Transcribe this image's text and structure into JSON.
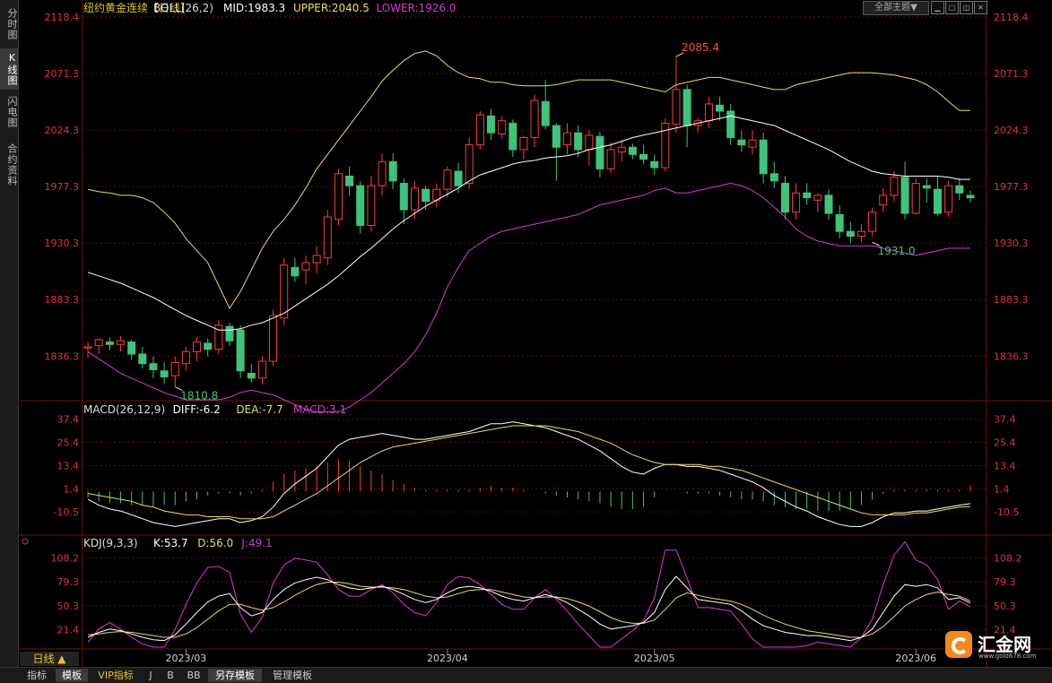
{
  "app": {
    "side_tabs": [
      "分时图",
      "K线图",
      "闪电图",
      "合约资料"
    ],
    "theme_button": "全部主题▼",
    "period_button": "日线 ▲",
    "bottom_tabs": [
      "指标",
      "模板",
      "VIP指标",
      "J",
      "B",
      "BB",
      "另存模板",
      "管理模板"
    ],
    "logo_text": "汇金网",
    "logo_url": "www.gold678.com"
  },
  "colors": {
    "up": "#ff3b3b",
    "down": "#3ec47a",
    "mid": "#ffffff",
    "upper": "#e6e04a",
    "lower": "#d43cd4",
    "grid": "#5a0f0f"
  },
  "chart_data": [
    {
      "type": "candlestick",
      "title": "纽约黄金连续",
      "period": "【日线】",
      "indicator": "BOLL(26,2)",
      "legend": [
        {
          "label": "MID:1983.3",
          "color": "#ffffff"
        },
        {
          "label": "UPPER:2040.5",
          "color": "#e6e04a"
        },
        {
          "label": "LOWER:1926.0",
          "color": "#d43cd4"
        }
      ],
      "y_ticks": [
        "2118.4",
        "2071.3",
        "2024.3",
        "1977.3",
        "1930.3",
        "1883.3",
        "1836.3"
      ],
      "ylim": [
        1800,
        2122
      ],
      "x_ticks": [
        {
          "label": "2023/03",
          "index": 9
        },
        {
          "label": "2023/04",
          "index": 33
        },
        {
          "label": "2023/05",
          "index": 52
        },
        {
          "label": "2023/06",
          "index": 76
        }
      ],
      "annotations": [
        {
          "label": "2085.4",
          "index": 54,
          "value": 2085.4
        },
        {
          "label": "1931.0",
          "index": 72,
          "value": 1931.0
        },
        {
          "label": "1810.8",
          "index": 8,
          "value": 1810.8
        }
      ],
      "ohlc": [
        [
          1843,
          1848,
          1835,
          1844
        ],
        [
          1845,
          1851,
          1838,
          1850
        ],
        [
          1848,
          1852,
          1841,
          1846
        ],
        [
          1846,
          1853,
          1840,
          1849
        ],
        [
          1848,
          1850,
          1833,
          1838
        ],
        [
          1838,
          1844,
          1826,
          1830
        ],
        [
          1830,
          1836,
          1818,
          1825
        ],
        [
          1824,
          1831,
          1813,
          1819
        ],
        [
          1820,
          1836,
          1810.8,
          1831
        ],
        [
          1830,
          1844,
          1824,
          1840
        ],
        [
          1840,
          1852,
          1832,
          1848
        ],
        [
          1847,
          1851,
          1836,
          1842
        ],
        [
          1842,
          1866,
          1838,
          1862
        ],
        [
          1861,
          1864,
          1845,
          1849
        ],
        [
          1858,
          1862,
          1818,
          1824
        ],
        [
          1822,
          1830,
          1814,
          1818
        ],
        [
          1818,
          1836,
          1813,
          1832
        ],
        [
          1832,
          1875,
          1828,
          1870
        ],
        [
          1868,
          1918,
          1862,
          1912
        ],
        [
          1910,
          1918,
          1898,
          1903
        ],
        [
          1908,
          1920,
          1896,
          1914
        ],
        [
          1914,
          1928,
          1905,
          1920
        ],
        [
          1918,
          1958,
          1912,
          1952
        ],
        [
          1950,
          1992,
          1945,
          1988
        ],
        [
          1986,
          1994,
          1970,
          1978
        ],
        [
          1978,
          1982,
          1938,
          1945
        ],
        [
          1945,
          1986,
          1940,
          1978
        ],
        [
          1978,
          2005,
          1970,
          1998
        ],
        [
          1998,
          2005,
          1975,
          1982
        ],
        [
          1980,
          1984,
          1946,
          1958
        ],
        [
          1958,
          1982,
          1950,
          1976
        ],
        [
          1975,
          1978,
          1958,
          1965
        ],
        [
          1966,
          1980,
          1960,
          1975
        ],
        [
          1975,
          1994,
          1968,
          1991
        ],
        [
          1990,
          1997,
          1972,
          1978
        ],
        [
          1980,
          2018,
          1975,
          2012
        ],
        [
          2012,
          2040,
          2008,
          2037
        ],
        [
          2036,
          2042,
          2016,
          2022
        ],
        [
          2021,
          2036,
          2017,
          2032
        ],
        [
          2030,
          2033,
          2002,
          2008
        ],
        [
          2008,
          2020,
          2000,
          2018
        ],
        [
          2018,
          2054,
          2010,
          2049
        ],
        [
          2048,
          2066,
          2025,
          2028
        ],
        [
          2028,
          2030,
          1982,
          2010
        ],
        [
          2012,
          2030,
          2004,
          2022
        ],
        [
          2022,
          2028,
          2002,
          2008
        ],
        [
          2008,
          2024,
          1995,
          2020
        ],
        [
          2019,
          2023,
          1985,
          1992
        ],
        [
          1992,
          2014,
          1988,
          2008
        ],
        [
          2006,
          2016,
          1998,
          2010
        ],
        [
          2010,
          2013,
          2000,
          2004
        ],
        [
          2004,
          2012,
          1996,
          2000
        ],
        [
          1998,
          2004,
          1987,
          1993
        ],
        [
          1993,
          2034,
          1990,
          2030
        ],
        [
          2029,
          2085.4,
          2022,
          2058
        ],
        [
          2058,
          2062,
          2010,
          2028
        ],
        [
          2028,
          2034,
          2022,
          2032
        ],
        [
          2032,
          2052,
          2026,
          2046
        ],
        [
          2045,
          2052,
          2032,
          2040
        ],
        [
          2040,
          2046,
          2012,
          2018
        ],
        [
          2016,
          2024,
          2006,
          2012
        ],
        [
          2010,
          2024,
          2004,
          2016
        ],
        [
          2016,
          2022,
          1980,
          1988
        ],
        [
          1988,
          1998,
          1976,
          1982
        ],
        [
          1980,
          1986,
          1950,
          1956
        ],
        [
          1956,
          1980,
          1950,
          1972
        ],
        [
          1972,
          1980,
          1962,
          1968
        ],
        [
          1966,
          1972,
          1956,
          1970
        ],
        [
          1970,
          1975,
          1950,
          1955
        ],
        [
          1954,
          1962,
          1934,
          1940
        ],
        [
          1940,
          1948,
          1930,
          1936
        ],
        [
          1936,
          1946,
          1931,
          1940
        ],
        [
          1940,
          1960,
          1936,
          1956
        ],
        [
          1962,
          1976,
          1956,
          1970
        ],
        [
          1970,
          1990,
          1965,
          1985
        ],
        [
          1985,
          1998,
          1950,
          1955
        ],
        [
          1955,
          1984,
          1954,
          1980
        ],
        [
          1978,
          1984,
          1964,
          1976
        ],
        [
          1975,
          1986,
          1953,
          1955
        ],
        [
          1956,
          1982,
          1952,
          1978
        ],
        [
          1978,
          1984,
          1966,
          1972
        ],
        [
          1970,
          1974,
          1964,
          1968
        ]
      ],
      "mid": [
        1906,
        1903,
        1900,
        1897,
        1893,
        1889,
        1885,
        1880,
        1875,
        1870,
        1866,
        1862,
        1858,
        1858,
        1859,
        1862,
        1864,
        1868,
        1872,
        1878,
        1884,
        1890,
        1896,
        1903,
        1911,
        1919,
        1926,
        1934,
        1942,
        1949,
        1955,
        1961,
        1966,
        1971,
        1976,
        1982,
        1987,
        1990,
        1993,
        1996,
        1998,
        1999,
        2001,
        2002,
        2003,
        2005,
        2008,
        2010,
        2012,
        2015,
        2018,
        2020,
        2022,
        2024,
        2026,
        2028,
        2030,
        2032,
        2034,
        2036,
        2034,
        2032,
        2030,
        2028,
        2024,
        2020,
        2016,
        2012,
        2008,
        2003,
        1998,
        1994,
        1990,
        1988,
        1987,
        1986,
        1986,
        1986,
        1986,
        1985,
        1983.3,
        1983.3
      ],
      "upper": [
        1975,
        1973,
        1972,
        1970,
        1970,
        1968,
        1964,
        1956,
        1947,
        1934,
        1924,
        1914,
        1895,
        1876,
        1890,
        1908,
        1926,
        1940,
        1950,
        1962,
        1976,
        1992,
        2004,
        2016,
        2028,
        2040,
        2052,
        2065,
        2074,
        2082,
        2088,
        2090,
        2086,
        2078,
        2072,
        2068,
        2067,
        2064,
        2064,
        2062,
        2061,
        2061,
        2061,
        2062,
        2064,
        2066,
        2066,
        2066,
        2066,
        2064,
        2062,
        2060,
        2058,
        2056,
        2062,
        2064,
        2066,
        2068,
        2068,
        2066,
        2064,
        2062,
        2060,
        2058,
        2058,
        2062,
        2064,
        2066,
        2068,
        2070,
        2072,
        2072,
        2072,
        2071,
        2070,
        2068,
        2066,
        2062,
        2056,
        2048,
        2040.5,
        2040.5
      ],
      "lower": [
        1840,
        1834,
        1828,
        1822,
        1818,
        1814,
        1810,
        1806,
        1803,
        1800,
        1800,
        1800,
        1800,
        1802,
        1806,
        1808,
        1806,
        1804,
        1800,
        1796,
        1792,
        1790,
        1790,
        1790,
        1794,
        1800,
        1806,
        1814,
        1822,
        1830,
        1840,
        1854,
        1872,
        1894,
        1910,
        1924,
        1930,
        1936,
        1940,
        1942,
        1944,
        1946,
        1948,
        1950,
        1952,
        1954,
        1958,
        1962,
        1964,
        1966,
        1968,
        1970,
        1974,
        1976,
        1972,
        1972,
        1974,
        1976,
        1978,
        1980,
        1978,
        1974,
        1968,
        1960,
        1952,
        1942,
        1936,
        1932,
        1930,
        1928,
        1928,
        1928,
        1928,
        1926,
        1924,
        1922,
        1920,
        1922,
        1924,
        1926,
        1926.0,
        1926.0
      ]
    },
    {
      "type": "bar-line",
      "indicator": "MACD(26,12,9)",
      "legend": [
        {
          "label": "DIFF:-6.2",
          "color": "#ffffff"
        },
        {
          "label": "DEA:-7.7",
          "color": "#e6e04a"
        },
        {
          "label": "MACD:3.1",
          "color": "#d43cd4"
        }
      ],
      "y_ticks": [
        "37.4",
        "25.4",
        "13.4",
        "1.4",
        "-10.5"
      ],
      "ylim": [
        -22,
        40
      ],
      "diff": [
        -4,
        -7,
        -9,
        -10,
        -12,
        -14,
        -16,
        -17,
        -18,
        -17,
        -16,
        -15,
        -14,
        -14,
        -16,
        -15,
        -13,
        -8,
        -1,
        4,
        8,
        12,
        18,
        24,
        27,
        28,
        29,
        30,
        29,
        28,
        27,
        27,
        28,
        29,
        30,
        31,
        33,
        35,
        35,
        36,
        35,
        34,
        33,
        31,
        29,
        27,
        24,
        21,
        17,
        13,
        10,
        9,
        12,
        14,
        14,
        13,
        13,
        12,
        11,
        9,
        7,
        5,
        2,
        -2,
        -5,
        -8,
        -10,
        -13,
        -15,
        -17,
        -18,
        -18,
        -16,
        -13,
        -11,
        -11,
        -10,
        -10,
        -9,
        -8,
        -7,
        -6.2
      ],
      "dea": [
        -1,
        -2,
        -3,
        -4,
        -5,
        -7,
        -8,
        -10,
        -11,
        -12,
        -12,
        -13,
        -13,
        -13,
        -14,
        -14,
        -14,
        -13,
        -10,
        -7,
        -4,
        -1,
        3,
        7,
        11,
        15,
        18,
        21,
        23,
        24,
        25,
        26,
        27,
        28,
        29,
        30,
        31,
        32,
        33,
        34,
        34,
        34,
        34,
        33,
        32,
        31,
        29,
        27,
        25,
        22,
        19,
        17,
        15,
        14,
        14,
        14,
        14,
        13,
        13,
        12,
        11,
        9,
        7,
        5,
        3,
        1,
        -1,
        -3,
        -5,
        -7,
        -9,
        -11,
        -12,
        -12,
        -12,
        -12,
        -11,
        -11,
        -10,
        -9,
        -8,
        -7.7
      ],
      "macd": [
        -3,
        -5,
        -6,
        -6,
        -7,
        -7,
        -8,
        -7,
        -7,
        -5,
        -4,
        -2,
        -1,
        -1,
        -2,
        -1,
        1,
        5,
        9,
        11,
        12,
        13,
        15,
        17,
        16,
        13,
        11,
        9,
        6,
        4,
        2,
        1,
        1,
        1,
        1,
        1,
        2,
        3,
        2,
        2,
        1,
        0,
        -1,
        -2,
        -3,
        -4,
        -5,
        -6,
        -8,
        -9,
        -9,
        -8,
        -3,
        0,
        0,
        -1,
        -1,
        -1,
        -2,
        -3,
        -4,
        -4,
        -5,
        -7,
        -8,
        -9,
        -9,
        -10,
        -10,
        -10,
        -9,
        -7,
        -4,
        -1,
        1,
        1,
        1,
        1,
        1,
        1,
        1,
        3.1
      ]
    },
    {
      "type": "line",
      "indicator": "KDJ(9,3,3)",
      "legend": [
        {
          "label": "K:53.7",
          "color": "#ffffff"
        },
        {
          "label": "D:56.0",
          "color": "#e6e04a"
        },
        {
          "label": "J:49.1",
          "color": "#d43cd4"
        }
      ],
      "y_ticks": [
        "108.2",
        "79.3",
        "50.3",
        "21.4"
      ],
      "ylim": [
        0,
        122
      ],
      "k": [
        12,
        18,
        22,
        20,
        16,
        12,
        9,
        8,
        15,
        28,
        42,
        55,
        62,
        65,
        48,
        38,
        42,
        58,
        70,
        78,
        82,
        85,
        82,
        76,
        72,
        70,
        72,
        74,
        70,
        64,
        58,
        54,
        58,
        66,
        72,
        74,
        72,
        68,
        62,
        58,
        56,
        60,
        64,
        60,
        54,
        46,
        38,
        28,
        22,
        24,
        26,
        30,
        42,
        70,
        86,
        72,
        58,
        56,
        54,
        52,
        44,
        34,
        26,
        22,
        18,
        16,
        14,
        14,
        12,
        10,
        8,
        12,
        22,
        42,
        62,
        76,
        74,
        76,
        72,
        58,
        60,
        53.7
      ],
      "d": [
        15,
        16,
        18,
        19,
        18,
        16,
        14,
        12,
        12,
        16,
        24,
        34,
        44,
        52,
        52,
        48,
        45,
        48,
        55,
        63,
        70,
        76,
        79,
        79,
        77,
        74,
        73,
        73,
        72,
        70,
        66,
        62,
        60,
        61,
        65,
        69,
        70,
        70,
        67,
        64,
        61,
        60,
        61,
        61,
        59,
        55,
        50,
        43,
        36,
        31,
        29,
        29,
        33,
        46,
        60,
        66,
        63,
        60,
        58,
        56,
        52,
        46,
        39,
        33,
        28,
        24,
        20,
        18,
        16,
        14,
        12,
        12,
        16,
        25,
        37,
        50,
        58,
        64,
        67,
        64,
        62,
        56.0
      ],
      "j": [
        6,
        22,
        30,
        22,
        12,
        4,
        0,
        0,
        21,
        52,
        78,
        97,
        98,
        91,
        40,
        18,
        36,
        78,
        100,
        108,
        106,
        103,
        88,
        70,
        62,
        62,
        70,
        76,
        66,
        52,
        42,
        38,
        54,
        76,
        86,
        84,
        76,
        64,
        52,
        46,
        46,
        60,
        70,
        58,
        44,
        28,
        14,
        0,
        0,
        10,
        20,
        32,
        60,
        118,
        118,
        84,
        48,
        48,
        46,
        44,
        28,
        10,
        0,
        0,
        0,
        0,
        2,
        6,
        4,
        2,
        0,
        12,
        34,
        76,
        112,
        128,
        106,
        100,
        82,
        46,
        56,
        49.1
      ]
    }
  ]
}
